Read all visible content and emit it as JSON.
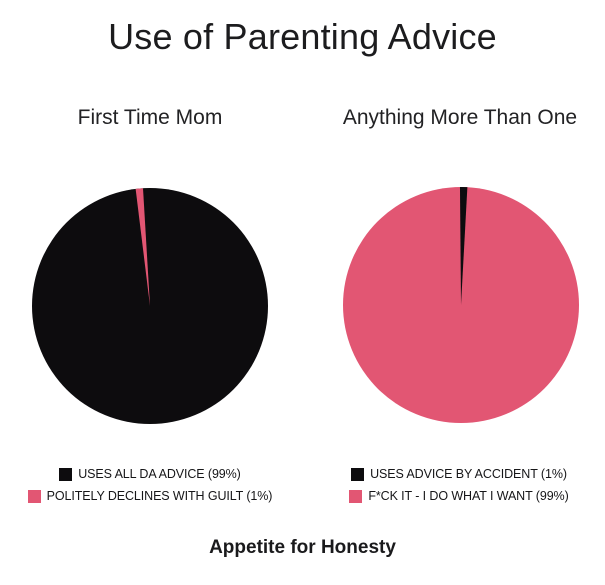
{
  "page": {
    "title": "Use of Parenting Advice",
    "footer": "Appetite for Honesty",
    "background_color": "#ffffff",
    "accent_pink": "#e25673",
    "accent_black": "#0d0c0e"
  },
  "chart_data": [
    {
      "type": "pie",
      "title": "First Time Mom",
      "rotation_deg": -3.4,
      "legend_position": "bottom",
      "slices": [
        {
          "label": "USES ALL DA ADVICE",
          "pct": 99,
          "color": "#0d0c0e",
          "legend_label": "USES ALL DA ADVICE (99%)"
        },
        {
          "label": "POLITELY DECLINES WITH GUILT",
          "pct": 1,
          "color": "#e25673",
          "legend_label": "POLITELY DECLINES WITH GUILT (1%)"
        }
      ]
    },
    {
      "type": "pie",
      "title": "Anything More Than One",
      "rotation_deg": -0.5,
      "legend_position": "bottom",
      "slices": [
        {
          "label": "USES ADVICE BY ACCIDENT",
          "pct": 1,
          "color": "#0d0c0e",
          "legend_label": "USES ADVICE BY ACCIDENT (1%)"
        },
        {
          "label": "F*CK IT - I DO WHAT I WANT",
          "pct": 99,
          "color": "#e25673",
          "legend_label": "F*CK IT - I DO WHAT I WANT (99%)"
        }
      ]
    }
  ]
}
